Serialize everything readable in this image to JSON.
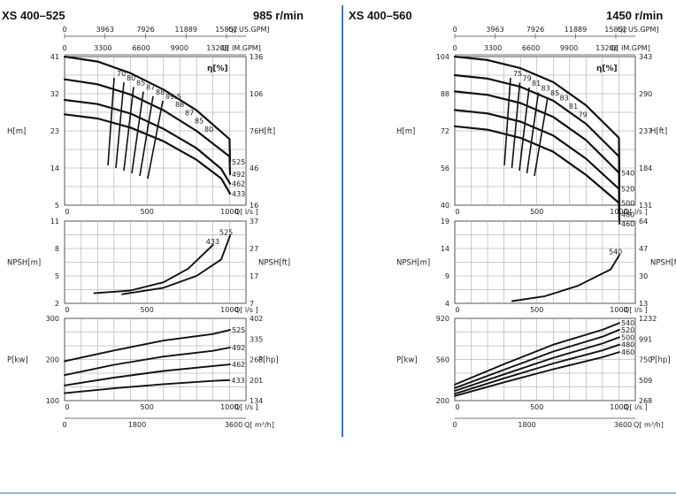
{
  "left": {
    "model": "XS 400–525",
    "speed": "985 r/min",
    "top_axis_usgpm": {
      "ticks": [
        "0",
        "3963",
        "7926",
        "11889",
        "15852"
      ],
      "unit": "Q[ US.GPM]"
    },
    "top_axis_imgpm": {
      "ticks": [
        "0",
        "3300",
        "6600",
        "9900",
        "13200"
      ],
      "unit": "Q[ IM.GPM]"
    },
    "H": {
      "ylabel": "H[m]",
      "ylabel_right": "H[ft]",
      "yticks": [
        "41",
        "32",
        "23",
        "14",
        "5"
      ],
      "yticks_right": [
        "136",
        "106",
        "76",
        "46",
        "16"
      ],
      "xticks": [
        "0",
        "500",
        "1000"
      ],
      "xunit": "Q[ l/s ]",
      "eff_label": "η[%]",
      "eff_values": [
        "70",
        "80",
        "85",
        "87",
        "88",
        "89.5",
        "88",
        "87",
        "85",
        "80"
      ],
      "curves": [
        "525",
        "492",
        "462",
        "433"
      ]
    },
    "NPSH": {
      "ylabel": "NPSH[m]",
      "ylabel_right": "NPSH[ft]",
      "yticks": [
        "11",
        "8",
        "5",
        "2"
      ],
      "yticks_right": [
        "37",
        "27",
        "17",
        "7"
      ],
      "xticks": [
        "0",
        "500",
        "1000"
      ],
      "xunit": "Q[ l/s ]",
      "curves": [
        "433",
        "525"
      ]
    },
    "P": {
      "ylabel": "P[kw]",
      "ylabel_right": "P[hp]",
      "yticks": [
        "300",
        "200",
        "100"
      ],
      "yticks_right": [
        "402",
        "335",
        "268",
        "201",
        "134"
      ],
      "xticks": [
        "0",
        "500",
        "1000"
      ],
      "xunit": "Q[ l/s ]",
      "curves": [
        "525",
        "492",
        "462",
        "433"
      ]
    },
    "bottom_axis": {
      "ticks": [
        "0",
        "1800",
        "3600"
      ],
      "unit": "Q[ m³/h]"
    }
  },
  "right": {
    "model": "XS 400–560",
    "speed": "1450 r/min",
    "top_axis_usgpm": {
      "ticks": [
        "0",
        "3963",
        "7926",
        "11889",
        "15852"
      ],
      "unit": "Q[ US.GPM]"
    },
    "top_axis_imgpm": {
      "ticks": [
        "0",
        "3300",
        "6600",
        "9900",
        "13200"
      ],
      "unit": "Q[ IM.GPM]"
    },
    "H": {
      "ylabel": "H[m]",
      "ylabel_right": "H[ft]",
      "yticks": [
        "104",
        "88",
        "72",
        "56",
        "40"
      ],
      "yticks_right": [
        "343",
        "290",
        "237",
        "184",
        "131"
      ],
      "xticks": [
        "0",
        "500",
        "1000"
      ],
      "xunit": "Q[ l/s ]",
      "eff_label": "η[%]",
      "eff_values": [
        "75",
        "79",
        "81",
        "83",
        "85",
        "83",
        "81",
        "79"
      ],
      "curves": [
        "540",
        "520",
        "500",
        "480",
        "460"
      ]
    },
    "NPSH": {
      "ylabel": "NPSH[m]",
      "ylabel_right": "NPSH[ft]",
      "yticks": [
        "19",
        "14",
        "9",
        "4"
      ],
      "yticks_right": [
        "64",
        "47",
        "30",
        "13"
      ],
      "xticks": [
        "0",
        "500",
        "1000"
      ],
      "xunit": "Q[ l/s ]",
      "curves": [
        "540"
      ]
    },
    "P": {
      "ylabel": "P[kw]",
      "ylabel_right": "P[hp]",
      "yticks": [
        "920",
        "560",
        "200"
      ],
      "yticks_right": [
        "1232",
        "991",
        "750",
        "509",
        "268"
      ],
      "xticks": [
        "0",
        "500",
        "1000"
      ],
      "xunit": "Q[ l/s ]",
      "curves": [
        "540",
        "520",
        "500",
        "480",
        "460"
      ]
    },
    "bottom_axis": {
      "ticks": [
        "0",
        "1800",
        "3600"
      ],
      "unit": "Q[ m³/h]"
    }
  },
  "chart_data": [
    {
      "type": "line",
      "title": "XS 400–525 985 r/min — Head",
      "xlabel": "Q[ l/s ]",
      "ylabel": "H[m]",
      "xlim": [
        0,
        1100
      ],
      "ylim": [
        5,
        41
      ],
      "series": [
        {
          "name": "525",
          "x": [
            0,
            200,
            400,
            600,
            800,
            1000,
            1150
          ],
          "y": [
            41,
            39.8,
            37,
            33,
            28,
            21,
            15.5
          ]
        },
        {
          "name": "492",
          "x": [
            0,
            200,
            400,
            600,
            800,
            1000,
            1100
          ],
          "y": [
            35.5,
            34.3,
            31.8,
            28,
            23,
            16.8,
            12.5
          ]
        },
        {
          "name": "462",
          "x": [
            0,
            200,
            400,
            600,
            800,
            950,
            1050
          ],
          "y": [
            30.5,
            29.5,
            27.2,
            23.5,
            18.8,
            13.8,
            10.2
          ]
        },
        {
          "name": "433",
          "x": [
            0,
            200,
            400,
            600,
            800,
            950,
            1050
          ],
          "y": [
            27,
            26,
            23.8,
            20.5,
            16,
            11.5,
            7.8
          ]
        }
      ]
    },
    {
      "type": "line",
      "title": "XS 400–525 985 r/min — NPSH",
      "xlabel": "Q[ l/s ]",
      "ylabel": "NPSH[m]",
      "xlim": [
        0,
        1100
      ],
      "ylim": [
        2,
        11
      ],
      "series": [
        {
          "name": "433",
          "x": [
            180,
            400,
            600,
            750,
            900
          ],
          "y": [
            3.1,
            3.4,
            4.3,
            5.8,
            8.4
          ]
        },
        {
          "name": "525",
          "x": [
            350,
            600,
            800,
            950,
            1100
          ],
          "y": [
            3.0,
            3.7,
            5.0,
            6.8,
            9.4
          ]
        }
      ]
    },
    {
      "type": "line",
      "title": "XS 400–525 985 r/min — Power",
      "xlabel": "Q[ l/s ]",
      "ylabel": "P[kw]",
      "xlim": [
        0,
        1100
      ],
      "ylim": [
        100,
        300
      ],
      "series": [
        {
          "name": "525",
          "x": [
            0,
            300,
            600,
            900,
            1150
          ],
          "y": [
            196,
            222,
            246,
            262,
            272
          ]
        },
        {
          "name": "492",
          "x": [
            0,
            300,
            600,
            900,
            1100
          ],
          "y": [
            162,
            187,
            207,
            221,
            229
          ]
        },
        {
          "name": "462",
          "x": [
            0,
            300,
            600,
            900,
            1050
          ],
          "y": [
            137,
            156,
            172,
            184,
            188
          ]
        },
        {
          "name": "433",
          "x": [
            0,
            300,
            600,
            900,
            1000
          ],
          "y": [
            118,
            130,
            140,
            148,
            150
          ]
        }
      ]
    },
    {
      "type": "line",
      "title": "XS 400–560 1450 r/min — Head",
      "xlabel": "Q[ l/s ]",
      "ylabel": "H[m]",
      "xlim": [
        0,
        1100
      ],
      "ylim": [
        40,
        104
      ],
      "series": [
        {
          "name": "540",
          "x": [
            0,
            200,
            400,
            600,
            800,
            1000,
            1150
          ],
          "y": [
            104,
            102.5,
            99,
            93,
            83,
            69,
            54
          ]
        },
        {
          "name": "520",
          "x": [
            0,
            200,
            400,
            600,
            800,
            1000,
            1130
          ],
          "y": [
            96,
            94.5,
            91,
            85,
            75,
            61,
            47
          ]
        },
        {
          "name": "500",
          "x": [
            0,
            200,
            400,
            600,
            800,
            1000,
            1110
          ],
          "y": [
            89,
            87.5,
            84,
            78,
            68,
            54,
            41
          ]
        },
        {
          "name": "480",
          "x": [
            0,
            200,
            400,
            600,
            800,
            1000,
            1090
          ],
          "y": [
            81,
            79.5,
            76,
            70,
            60,
            47,
            36
          ]
        },
        {
          "name": "460",
          "x": [
            0,
            200,
            400,
            600,
            800,
            1000,
            1070
          ],
          "y": [
            74,
            72.5,
            69,
            63,
            53,
            41,
            32
          ]
        }
      ]
    },
    {
      "type": "line",
      "title": "XS 400–560 1450 r/min — NPSH",
      "xlabel": "Q[ l/s ]",
      "ylabel": "NPSH[m]",
      "xlim": [
        0,
        1100
      ],
      "ylim": [
        4,
        19
      ],
      "series": [
        {
          "name": "540",
          "x": [
            350,
            550,
            750,
            950,
            1100
          ],
          "y": [
            4.4,
            5.3,
            7.2,
            10.2,
            12.8
          ]
        }
      ]
    },
    {
      "type": "line",
      "title": "XS 400–560 1450 r/min — Power",
      "xlabel": "Q[ l/s ]",
      "ylabel": "P[kw]",
      "xlim": [
        0,
        1100
      ],
      "ylim": [
        200,
        920
      ],
      "series": [
        {
          "name": "540",
          "x": [
            0,
            300,
            600,
            900,
            1150
          ],
          "y": [
            340,
            520,
            690,
            820,
            880
          ]
        },
        {
          "name": "520",
          "x": [
            0,
            300,
            600,
            900,
            1150
          ],
          "y": [
            310,
            470,
            630,
            760,
            820
          ]
        },
        {
          "name": "500",
          "x": [
            0,
            300,
            600,
            900,
            1150
          ],
          "y": [
            285,
            430,
            575,
            700,
            755
          ]
        },
        {
          "name": "480",
          "x": [
            0,
            300,
            600,
            900,
            1150
          ],
          "y": [
            260,
            395,
            525,
            640,
            690
          ]
        },
        {
          "name": "460",
          "x": [
            0,
            300,
            600,
            900,
            1150
          ],
          "y": [
            240,
            360,
            475,
            580,
            625
          ]
        }
      ]
    }
  ]
}
